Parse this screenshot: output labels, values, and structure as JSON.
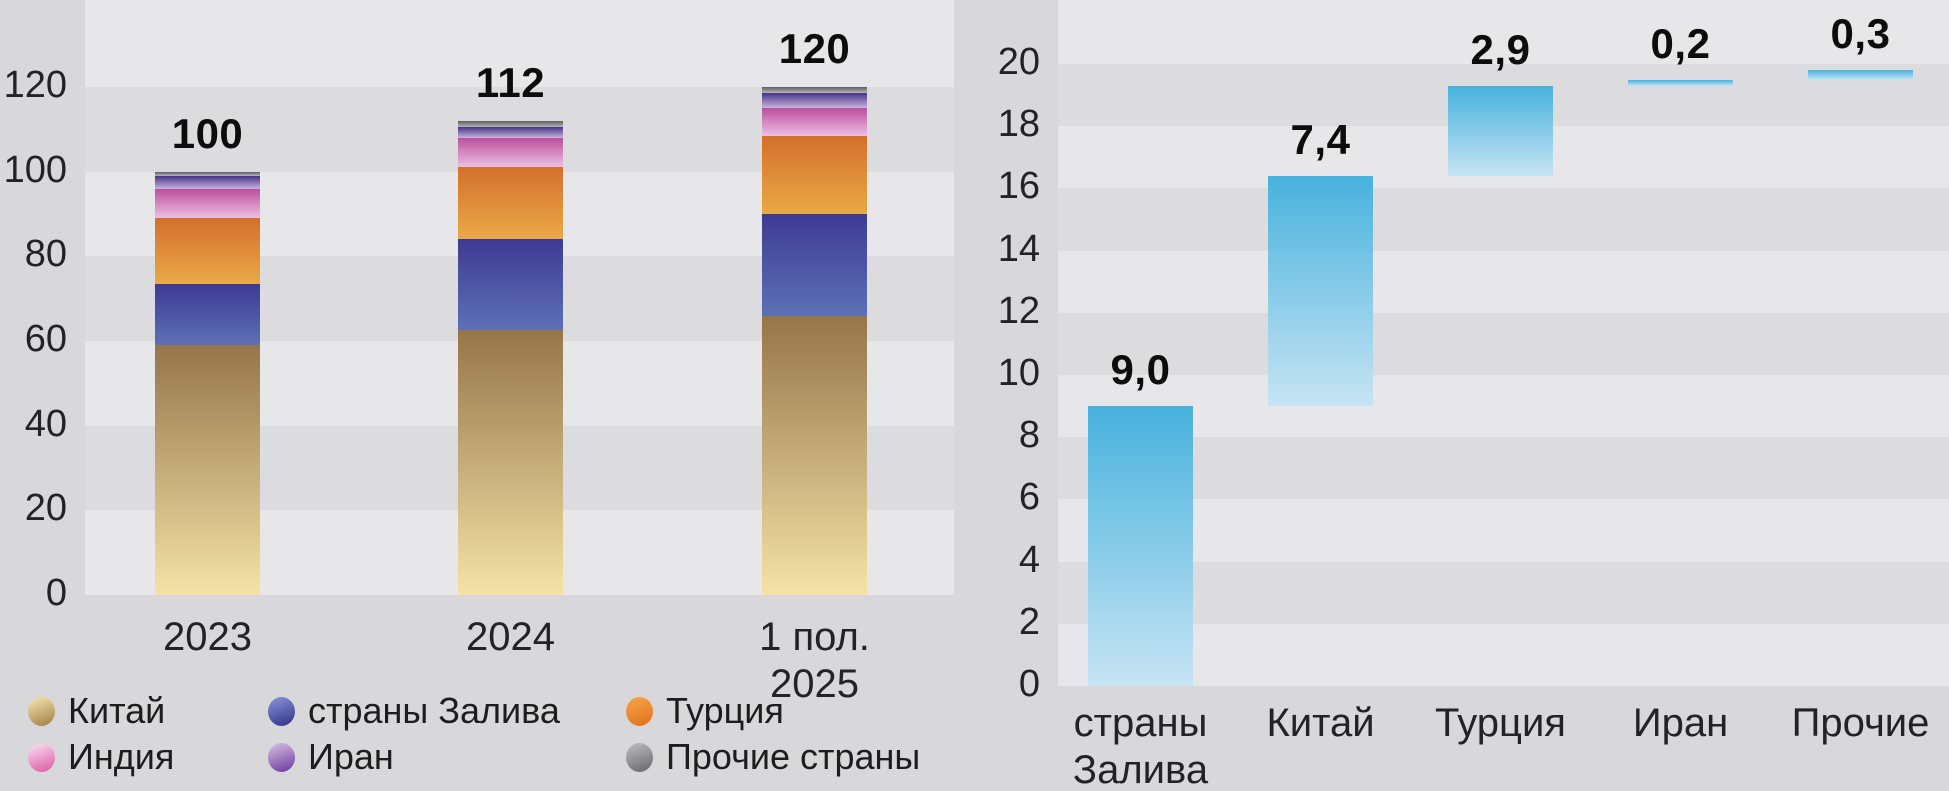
{
  "colors": {
    "background": "#d8d8da",
    "stripe_light": "#e7e7e9",
    "stripe_dark": "#dcdcdf",
    "text": "#222326"
  },
  "chart_data": [
    {
      "type": "bar",
      "subtype": "stacked",
      "title": "",
      "xlabel": "",
      "ylabel": "",
      "grid": "striped-horizontal",
      "legend_position": "bottom",
      "categories": [
        "2023",
        "2024",
        "1 пол. 2025"
      ],
      "category_label_lines": [
        [
          "2023"
        ],
        [
          "2024"
        ],
        [
          "1 пол.",
          "2025"
        ]
      ],
      "ylim": [
        0,
        120
      ],
      "yticks": [
        0,
        20,
        40,
        60,
        80,
        100,
        120
      ],
      "ytick_labels": [
        "0",
        "20",
        "40",
        "60",
        "80",
        "100",
        "120"
      ],
      "totals": [
        100,
        112,
        120
      ],
      "total_labels": [
        "100",
        "112",
        "120"
      ],
      "series": [
        {
          "key": "china",
          "name": "Китай",
          "values": [
            59,
            62.5,
            66
          ],
          "gradient": [
            "#96754a",
            "#f4e3a7"
          ]
        },
        {
          "key": "gulf",
          "name": "страны Залива",
          "values": [
            14.5,
            21.5,
            24
          ],
          "gradient": [
            "#3e3a94",
            "#5d70b6"
          ]
        },
        {
          "key": "turkey",
          "name": "Турция",
          "values": [
            15.5,
            17,
            18.5
          ],
          "gradient": [
            "#d3702b",
            "#eaa947"
          ]
        },
        {
          "key": "india",
          "name": "Индия",
          "values": [
            7,
            7,
            6.5
          ],
          "gradient": [
            "#bc4f9e",
            "#ecc0e2"
          ]
        },
        {
          "key": "iran",
          "name": "Иран",
          "values": [
            3,
            2.5,
            3.5
          ],
          "gradient": [
            "#463487",
            "#c9b3dd"
          ]
        },
        {
          "key": "others",
          "name": "Прочие страны",
          "values": [
            1,
            1.5,
            1.5
          ],
          "gradient": [
            "#5e5e62",
            "#b6b6b9"
          ]
        }
      ]
    },
    {
      "type": "bar",
      "subtype": "waterfall",
      "title": "",
      "xlabel": "",
      "ylabel": "",
      "grid": "striped-horizontal",
      "categories": [
        "страны Залива",
        "Китай",
        "Турция",
        "Иран",
        "Прочие"
      ],
      "category_label_lines": [
        [
          "страны",
          "Залива"
        ],
        [
          "Китай"
        ],
        [
          "Турция"
        ],
        [
          "Иран"
        ],
        [
          "Прочие"
        ]
      ],
      "ylim": [
        0,
        20
      ],
      "yticks": [
        0,
        2,
        4,
        6,
        8,
        10,
        12,
        14,
        16,
        18,
        20
      ],
      "ytick_labels": [
        "0",
        "2",
        "4",
        "6",
        "8",
        "10",
        "12",
        "14",
        "16",
        "18",
        "20"
      ],
      "values": [
        9.0,
        7.4,
        2.9,
        0.2,
        0.3
      ],
      "value_labels": [
        "9,0",
        "7,4",
        "2,9",
        "0,2",
        "0,3"
      ],
      "cumulative_start": [
        0,
        9.0,
        16.4,
        19.3,
        19.5
      ],
      "bar_gradient": [
        "#47b2dd",
        "#c6e4f4"
      ]
    }
  ],
  "legend": {
    "items": [
      {
        "key": "china",
        "label": "Китай",
        "marker_gradient": [
          "#ead7a3",
          "#a8894f"
        ]
      },
      {
        "key": "gulf",
        "label": "страны Залива",
        "marker_gradient": [
          "#7d86d0",
          "#383b90"
        ]
      },
      {
        "key": "turkey",
        "label": "Турция",
        "marker_gradient": [
          "#f59d43",
          "#e2761f"
        ]
      },
      {
        "key": "india",
        "label": "Индия",
        "marker_gradient": [
          "#f4d0e8",
          "#de64ad"
        ]
      },
      {
        "key": "iran",
        "label": "Иран",
        "marker_gradient": [
          "#c9addd",
          "#7445a2"
        ]
      },
      {
        "key": "others",
        "label": "Прочие страны",
        "marker_gradient": [
          "#b2b2b5",
          "#6f6f73"
        ]
      }
    ]
  }
}
